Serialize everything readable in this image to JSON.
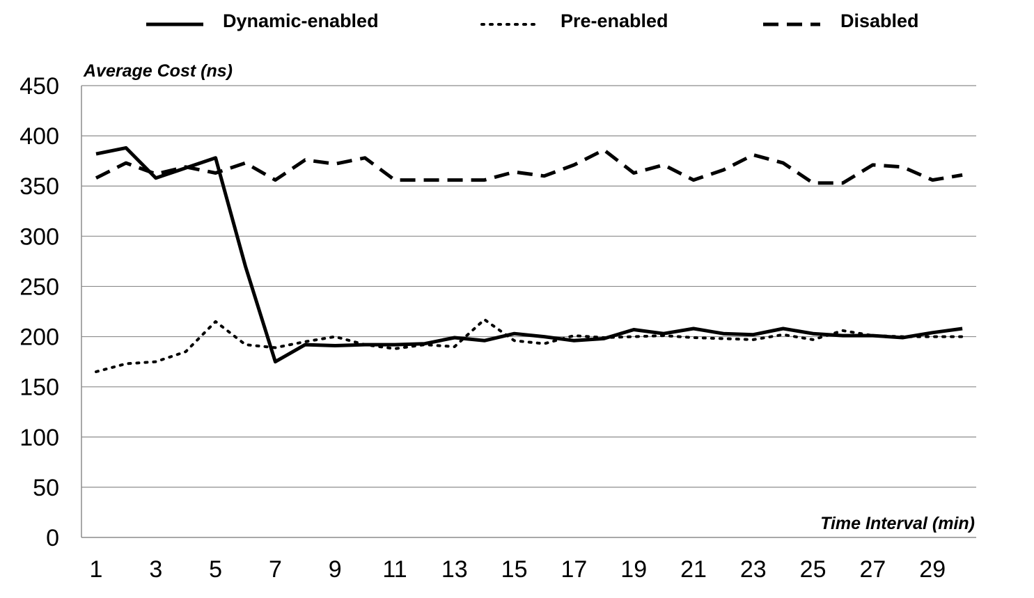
{
  "chart_data": {
    "type": "line",
    "ylabel": "Average Cost (ns)",
    "xlabel": "Time Interval (min)",
    "ylim": [
      0,
      450
    ],
    "yticks": [
      0,
      50,
      100,
      150,
      200,
      250,
      300,
      350,
      400,
      450
    ],
    "x": [
      1,
      2,
      3,
      4,
      5,
      6,
      7,
      8,
      9,
      10,
      11,
      12,
      13,
      14,
      15,
      16,
      17,
      18,
      19,
      20,
      21,
      22,
      23,
      24,
      25,
      26,
      27,
      28,
      29,
      30
    ],
    "xtick_labels": [
      "1",
      "3",
      "5",
      "7",
      "9",
      "11",
      "13",
      "15",
      "17",
      "19",
      "21",
      "23",
      "25",
      "27",
      "29"
    ],
    "grid": "horizontal",
    "legend_position": "top",
    "series": [
      {
        "name": "Dynamic-enabled",
        "style": "solid",
        "color": "#000000",
        "values": [
          382,
          388,
          358,
          368,
          378,
          270,
          175,
          192,
          191,
          192,
          192,
          193,
          199,
          196,
          203,
          200,
          196,
          198,
          207,
          203,
          208,
          203,
          202,
          208,
          203,
          201,
          201,
          199,
          204,
          208
        ]
      },
      {
        "name": "Pre-enabled",
        "style": "dotted",
        "color": "#000000",
        "values": [
          165,
          173,
          175,
          185,
          215,
          192,
          189,
          195,
          200,
          192,
          188,
          192,
          190,
          217,
          196,
          193,
          201,
          199,
          200,
          201,
          199,
          198,
          197,
          202,
          197,
          206,
          201,
          200,
          200,
          200
        ]
      },
      {
        "name": "Disabled",
        "style": "dashed",
        "color": "#000000",
        "values": [
          358,
          373,
          362,
          369,
          363,
          373,
          356,
          376,
          372,
          378,
          356,
          356,
          356,
          356,
          364,
          360,
          371,
          386,
          363,
          371,
          356,
          366,
          381,
          373,
          353,
          353,
          371,
          369,
          356,
          361
        ]
      }
    ]
  }
}
